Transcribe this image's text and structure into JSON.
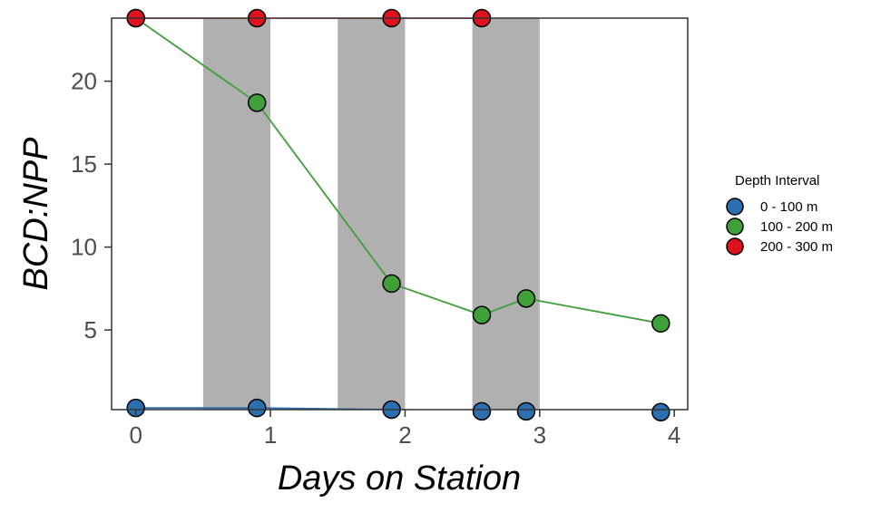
{
  "chart_data": {
    "type": "line",
    "xlabel": "Days on Station",
    "ylabel": "BCD:NPP",
    "xlim": [
      -0.18,
      4.1
    ],
    "ylim": [
      0.2,
      23.8
    ],
    "x_ticks": [
      0,
      1,
      2,
      3,
      4
    ],
    "y_ticks": [
      5,
      10,
      15,
      20
    ],
    "grid": false,
    "shaded_intervals": [
      [
        0.5,
        1.0
      ],
      [
        1.5,
        2.0
      ],
      [
        2.5,
        3.0
      ]
    ],
    "shade_color": "#b0b0b0",
    "legend": {
      "title": "Depth Interval",
      "placement": "right"
    },
    "series": [
      {
        "name": "0 - 100 m",
        "color": "#2c6fb0",
        "points": [
          {
            "x": 0.0,
            "y": 0.3
          },
          {
            "x": 0.9,
            "y": 0.3
          },
          {
            "x": 1.9,
            "y": 0.2
          },
          {
            "x": 2.57,
            "y": 0.1
          },
          {
            "x": 2.9,
            "y": 0.1
          },
          {
            "x": 3.9,
            "y": 0.05
          }
        ]
      },
      {
        "name": "100 - 200 m",
        "color": "#3fa03a",
        "points": [
          {
            "x": 0.0,
            "y": 23.8
          },
          {
            "x": 0.9,
            "y": 18.7
          },
          {
            "x": 1.9,
            "y": 7.8
          },
          {
            "x": 2.57,
            "y": 5.9
          },
          {
            "x": 2.9,
            "y": 6.9
          },
          {
            "x": 3.9,
            "y": 5.4
          }
        ]
      },
      {
        "name": "200 - 300 m",
        "color": "#e0101f",
        "points": [
          {
            "x": 0.0,
            "y": 23.8
          },
          {
            "x": 0.9,
            "y": 23.8
          },
          {
            "x": 1.9,
            "y": 23.8
          },
          {
            "x": 2.57,
            "y": 23.8
          }
        ]
      }
    ]
  }
}
